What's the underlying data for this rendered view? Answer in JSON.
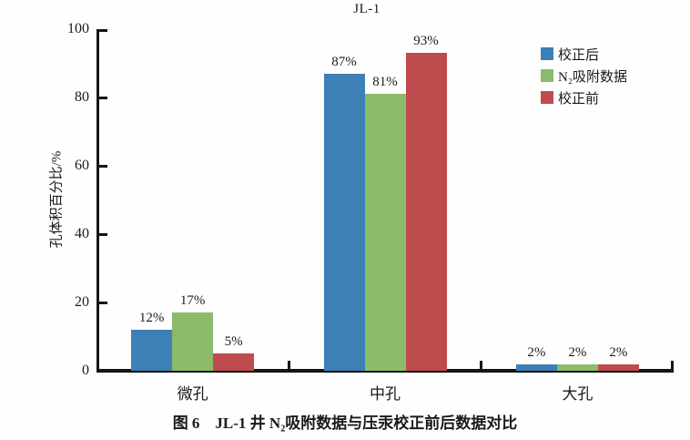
{
  "chart_data": {
    "type": "bar",
    "title": "JL-1",
    "ylabel": "孔体积百分比/%",
    "xlabel": "",
    "categories": [
      "微孔",
      "中孔",
      "大孔"
    ],
    "series": [
      {
        "name": "校正后",
        "color": "#3E7FB5",
        "values": [
          12,
          87,
          2
        ]
      },
      {
        "name": "N₂吸附数据",
        "color": "#8CBA6B",
        "values": [
          17,
          81,
          2
        ]
      },
      {
        "name": "校正前",
        "color": "#BE4B4D",
        "values": [
          5,
          93,
          2
        ]
      }
    ],
    "unit": "%",
    "ylim": [
      0,
      100
    ],
    "yticks": [
      0,
      20,
      40,
      60,
      80,
      100
    ],
    "grid": false,
    "legend_position": "top-right",
    "bar_labels_visible": true,
    "axis_color": "#151515"
  },
  "caption": "图 6　JL-1 井 N₂吸附数据与压汞校正前后数据对比"
}
